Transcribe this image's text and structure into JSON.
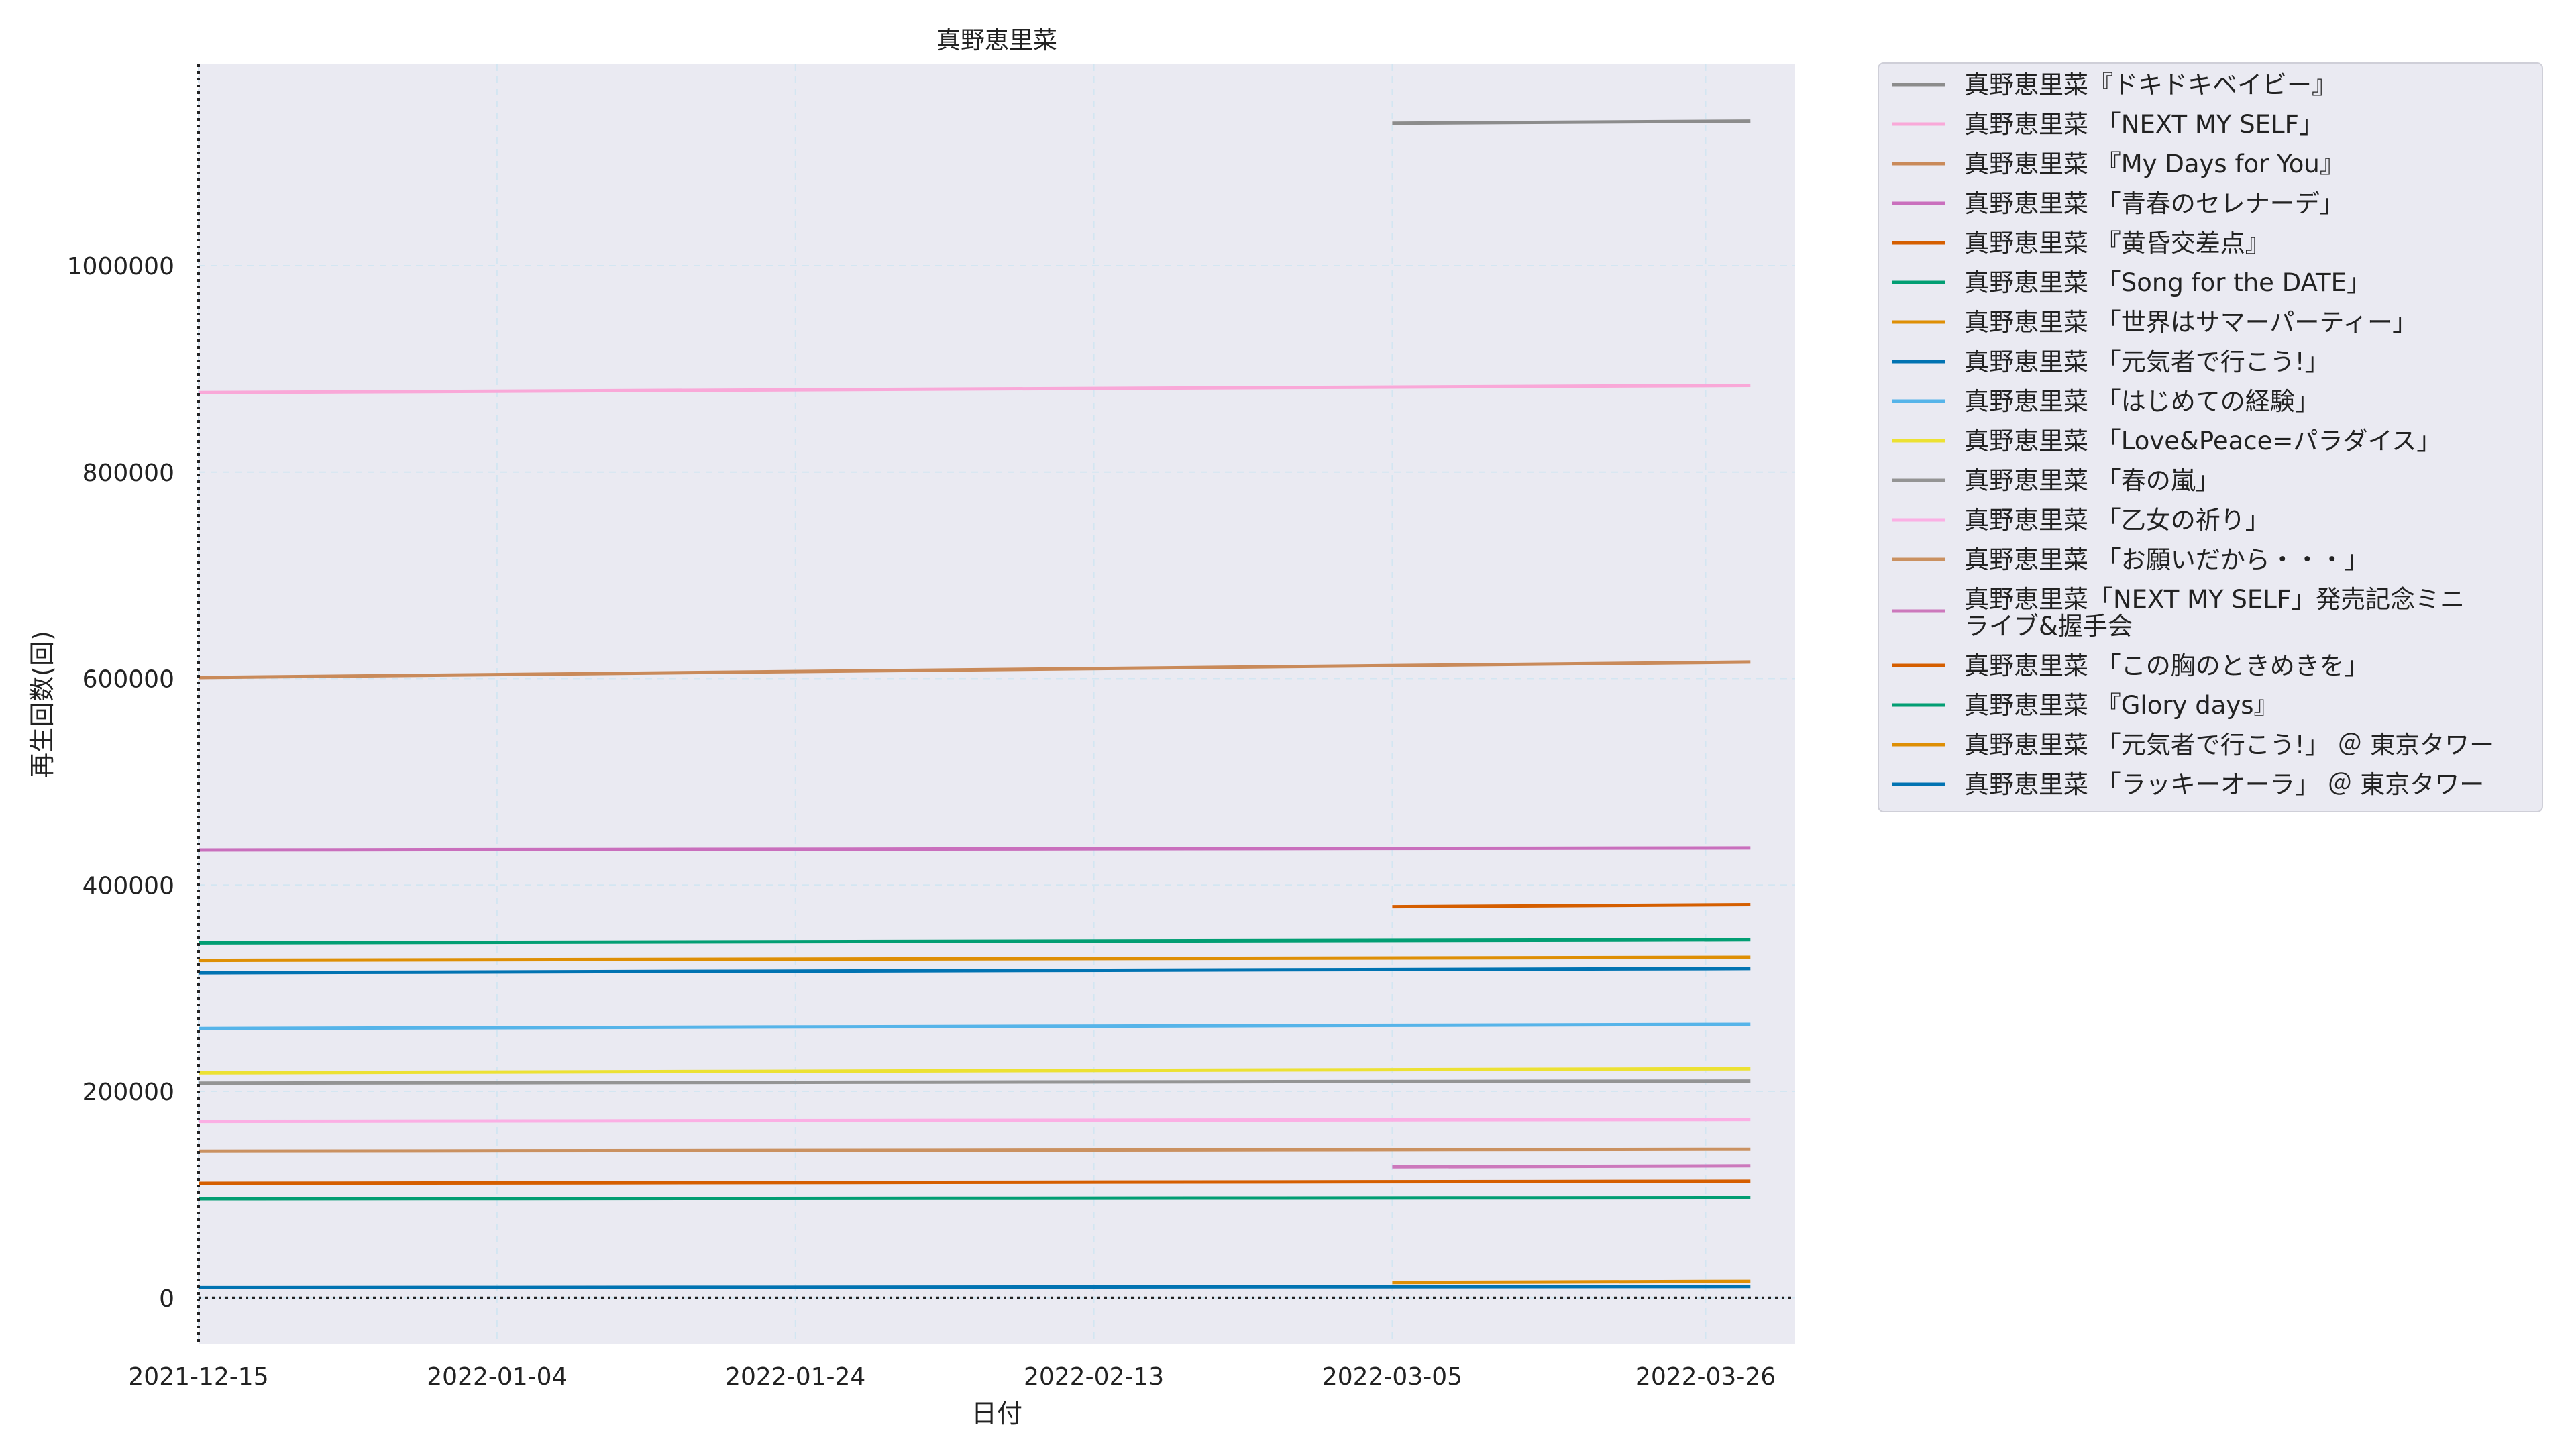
{
  "chart_data": {
    "type": "line",
    "title": "真野恵里菜",
    "xlabel": "日付",
    "ylabel": "再生回数(回)",
    "xlim": [
      "2021-12-15",
      "2022-04-01"
    ],
    "ylim": [
      -45000,
      1195000
    ],
    "x_ticks": [
      "2021-12-15",
      "2022-01-04",
      "2022-01-24",
      "2022-02-13",
      "2022-03-05",
      "2022-03-26"
    ],
    "y_ticks": [
      0,
      200000,
      400000,
      600000,
      800000,
      1000000
    ],
    "reference_lines": {
      "x": "2021-12-15",
      "y": 0
    },
    "grid": true,
    "legend_position": "outside-right",
    "series": [
      {
        "name": "真野恵里菜『ドキドキベイビー』",
        "color": "#8c8c8c",
        "x": [
          "2022-03-05",
          "2022-03-29"
        ],
        "values": [
          1138000,
          1140000
        ]
      },
      {
        "name": "真野恵里菜 「NEXT MY SELF」",
        "color": "#f9a8d8",
        "x": [
          "2021-12-15",
          "2022-03-29"
        ],
        "values": [
          877000,
          884000
        ]
      },
      {
        "name": "真野恵里菜 『My Days for You』",
        "color": "#c98a5a",
        "x": [
          "2021-12-15",
          "2022-03-29"
        ],
        "values": [
          601000,
          616000
        ]
      },
      {
        "name": "真野恵里菜 「青春のセレナーデ」",
        "color": "#c96fbd",
        "x": [
          "2021-12-15",
          "2022-03-29"
        ],
        "values": [
          434000,
          436000
        ]
      },
      {
        "name": "真野恵里菜 『黄昏交差点』",
        "color": "#d55e00",
        "x": [
          "2022-03-05",
          "2022-03-29"
        ],
        "values": [
          379000,
          381000
        ]
      },
      {
        "name": "真野恵里菜 「Song for the DATE」",
        "color": "#029e73",
        "x": [
          "2021-12-15",
          "2022-03-29"
        ],
        "values": [
          344000,
          347000
        ]
      },
      {
        "name": "真野恵里菜 「世界はサマーパーティー」",
        "color": "#de8f05",
        "x": [
          "2021-12-15",
          "2022-03-29"
        ],
        "values": [
          327000,
          330000
        ]
      },
      {
        "name": "真野恵里菜 「元気者で行こう!」",
        "color": "#0173b2",
        "x": [
          "2021-12-15",
          "2022-03-29"
        ],
        "values": [
          315000,
          319000
        ]
      },
      {
        "name": "真野恵里菜 「はじめての経験」",
        "color": "#56b4e9",
        "x": [
          "2021-12-15",
          "2022-03-29"
        ],
        "values": [
          261000,
          265000
        ]
      },
      {
        "name": "真野恵里菜 「Love&Peace=パラダイス」",
        "color": "#ece133",
        "x": [
          "2021-12-15",
          "2022-03-29"
        ],
        "values": [
          218000,
          222000
        ]
      },
      {
        "name": "真野恵里菜 「春の嵐」",
        "color": "#949494",
        "x": [
          "2021-12-15",
          "2022-03-29"
        ],
        "values": [
          208000,
          210000
        ]
      },
      {
        "name": "真野恵里菜 「乙女の祈り」",
        "color": "#fbafe4",
        "x": [
          "2021-12-15",
          "2022-03-29"
        ],
        "values": [
          171000,
          173000
        ]
      },
      {
        "name": "真野恵里菜 「お願いだから・・・」",
        "color": "#ca9161",
        "x": [
          "2021-12-15",
          "2022-03-29"
        ],
        "values": [
          142000,
          144000
        ]
      },
      {
        "name": "真野恵里菜「NEXT MY SELF」発売記念ミニライブ&握手会",
        "legend_lines": [
          "真野恵里菜「NEXT MY SELF」発売記念ミニ",
          "ライブ&握手会"
        ],
        "color": "#cc78bc",
        "x": [
          "2022-03-05",
          "2022-03-29"
        ],
        "values": [
          127000,
          128000
        ]
      },
      {
        "name": "真野恵里菜 「この胸のときめきを」",
        "color": "#d55e00",
        "x": [
          "2021-12-15",
          "2022-03-29"
        ],
        "values": [
          111000,
          113000
        ]
      },
      {
        "name": "真野恵里菜 『Glory days』",
        "color": "#029e73",
        "x": [
          "2021-12-15",
          "2022-03-29"
        ],
        "values": [
          96000,
          97000
        ]
      },
      {
        "name": "真野恵里菜 「元気者で行こう!」 ＠ 東京タワー",
        "color": "#de8f05",
        "x": [
          "2022-03-05",
          "2022-03-29"
        ],
        "values": [
          15000,
          16000
        ]
      },
      {
        "name": "真野恵里菜 「ラッキーオーラ」 ＠ 東京タワー",
        "color": "#0173b2",
        "x": [
          "2021-12-15",
          "2022-03-29"
        ],
        "values": [
          10000,
          11000
        ]
      }
    ]
  }
}
